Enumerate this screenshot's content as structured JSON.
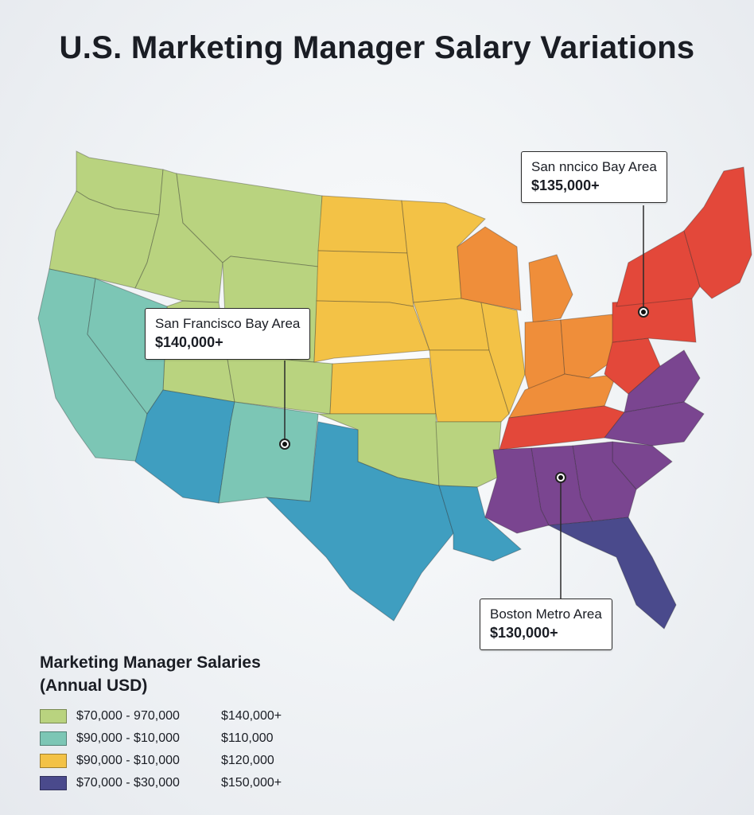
{
  "title": "U.S. Marketing Manager Salary Variations",
  "colors": {
    "lime": "#b9d37f",
    "teal": "#7cc6b5",
    "blue": "#3f9ec0",
    "yellow": "#f3c246",
    "orange": "#ef8e3a",
    "red": "#e3483a",
    "purple": "#7a4590",
    "navy": "#4a4a8c"
  },
  "callouts": [
    {
      "place": "San nncico Bay Area",
      "amount": "$135,000+"
    },
    {
      "place": "San Francisco Bay Area",
      "amount": "$140,000+"
    },
    {
      "place": "Boston Metro Area",
      "amount": "$130,000+"
    }
  ],
  "legend": {
    "title_line1": "Marketing Manager Salaries",
    "title_line2": "(Annual USD)",
    "items": [
      {
        "range": "$70,000 - 970,000",
        "upper": "$140,000+",
        "color": "#b9d37f"
      },
      {
        "range": "$90,000 - $10,000",
        "upper": "$110,000",
        "color": "#7cc6b5"
      },
      {
        "range": "$90,000 - $10,000",
        "upper": "$120,000",
        "color": "#f3c246"
      },
      {
        "range": "$70,000 - $30,000",
        "upper": "$150,000+",
        "color": "#4a4a8c"
      }
    ]
  }
}
